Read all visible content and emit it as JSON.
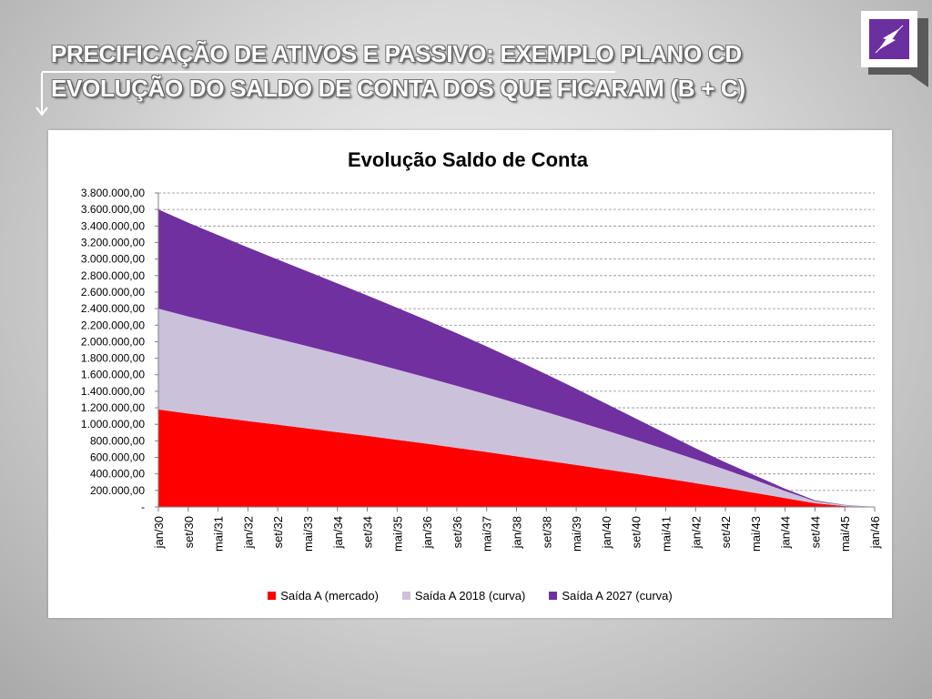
{
  "slide": {
    "title_line1": "PRECIFICAÇÃO DE ATIVOS E PASSIVO:  EXEMPLO PLANO CD",
    "title_line2": "EVOLUÇÃO DO SALDO DE CONTA DOS QUE FICARAM (B + C)"
  },
  "logo": {
    "icon": "compass-arrow-logo",
    "color": "#6b2fa0"
  },
  "chart_data": {
    "type": "area",
    "stacked": true,
    "title": "Evolução Saldo de Conta",
    "xlabel": "",
    "ylabel": "",
    "ylim": [
      0,
      3800000
    ],
    "ytick_values": [
      0,
      200000,
      400000,
      600000,
      800000,
      1000000,
      1200000,
      1400000,
      1600000,
      1800000,
      2000000,
      2200000,
      2400000,
      2600000,
      2800000,
      3000000,
      3200000,
      3400000,
      3600000,
      3800000
    ],
    "ytick_labels": [
      "-",
      "200.000,00",
      "400.000,00",
      "600.000,00",
      "800.000,00",
      "1.000.000,00",
      "1.200.000,00",
      "1.400.000,00",
      "1.600.000,00",
      "1.800.000,00",
      "2.000.000,00",
      "2.200.000,00",
      "2.400.000,00",
      "2.600.000,00",
      "2.800.000,00",
      "3.000.000,00",
      "3.200.000,00",
      "3.400.000,00",
      "3.600.000,00",
      "3.800.000,00"
    ],
    "x": [
      "jan/30",
      "set/30",
      "mai/31",
      "jan/32",
      "set/32",
      "mai/33",
      "jan/34",
      "set/34",
      "mai/35",
      "jan/36",
      "set/36",
      "mai/37",
      "jan/38",
      "set/38",
      "mai/39",
      "jan/40",
      "set/40",
      "mai/41",
      "jan/42",
      "set/42",
      "mai/43",
      "jan/44",
      "set/44",
      "mai/45",
      "jan/46"
    ],
    "grid": true,
    "legend_position": "bottom",
    "series": [
      {
        "name": "Saída A (mercado)",
        "color": "#ff0000",
        "values": [
          1180000,
          1130000,
          1085000,
          1040000,
          995000,
          950000,
          905000,
          860000,
          812000,
          765000,
          715000,
          665000,
          613000,
          561000,
          508000,
          455000,
          400000,
          345000,
          288000,
          230000,
          170000,
          108000,
          45000,
          10000,
          0
        ]
      },
      {
        "name": "Saída A 2018 (curva)",
        "color": "#ccc1da",
        "values": [
          1220000,
          1175000,
          1130000,
          1085000,
          1040000,
          995000,
          948000,
          900000,
          851000,
          801000,
          750000,
          697000,
          643000,
          587000,
          530000,
          472000,
          412000,
          350000,
          287000,
          222000,
          155000,
          85000,
          25000,
          10000,
          0
        ]
      },
      {
        "name": "Saída A 2027 (curva)",
        "color": "#7030a0",
        "values": [
          1200000,
          1135000,
          1075000,
          1015000,
          960000,
          905000,
          853000,
          800000,
          748000,
          694000,
          638000,
          580000,
          520000,
          457000,
          392000,
          323000,
          258000,
          195000,
          135000,
          88000,
          55000,
          27000,
          10000,
          5000,
          0
        ]
      }
    ]
  }
}
